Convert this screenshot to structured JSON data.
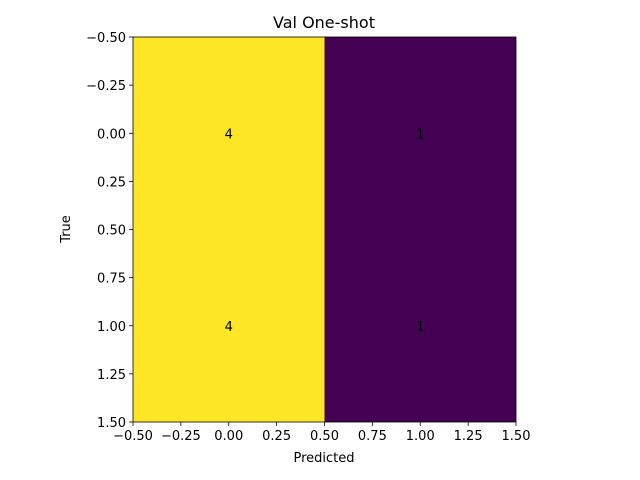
{
  "chart_data": {
    "type": "heatmap",
    "title": "Val One-shot",
    "x_label": "Predicted",
    "y_label": "True",
    "matrix": [
      [
        4,
        1
      ],
      [
        4,
        1
      ]
    ],
    "color_range": [
      "#440154",
      "#fde725"
    ],
    "xlim": [
      -0.5,
      1.5
    ],
    "ylim": [
      1.5,
      -0.5
    ],
    "xticks": [
      {
        "value": -0.5,
        "label": "−0.50"
      },
      {
        "value": -0.25,
        "label": "−0.25"
      },
      {
        "value": 0,
        "label": "0.00"
      },
      {
        "value": 0.25,
        "label": "0.25"
      },
      {
        "value": 0.5,
        "label": "0.50"
      },
      {
        "value": 0.75,
        "label": "0.75"
      },
      {
        "value": 1,
        "label": "1.00"
      },
      {
        "value": 1.25,
        "label": "1.25"
      },
      {
        "value": 1.5,
        "label": "1.50"
      }
    ],
    "yticks": [
      {
        "value": -0.5,
        "label": "−0.50"
      },
      {
        "value": -0.25,
        "label": "−0.25"
      },
      {
        "value": 0,
        "label": "0.00"
      },
      {
        "value": 0.25,
        "label": "0.25"
      },
      {
        "value": 0.5,
        "label": "0.50"
      },
      {
        "value": 0.75,
        "label": "0.75"
      },
      {
        "value": 1,
        "label": "1.00"
      },
      {
        "value": 1.25,
        "label": "1.25"
      },
      {
        "value": 1.5,
        "label": "1.50"
      }
    ]
  }
}
